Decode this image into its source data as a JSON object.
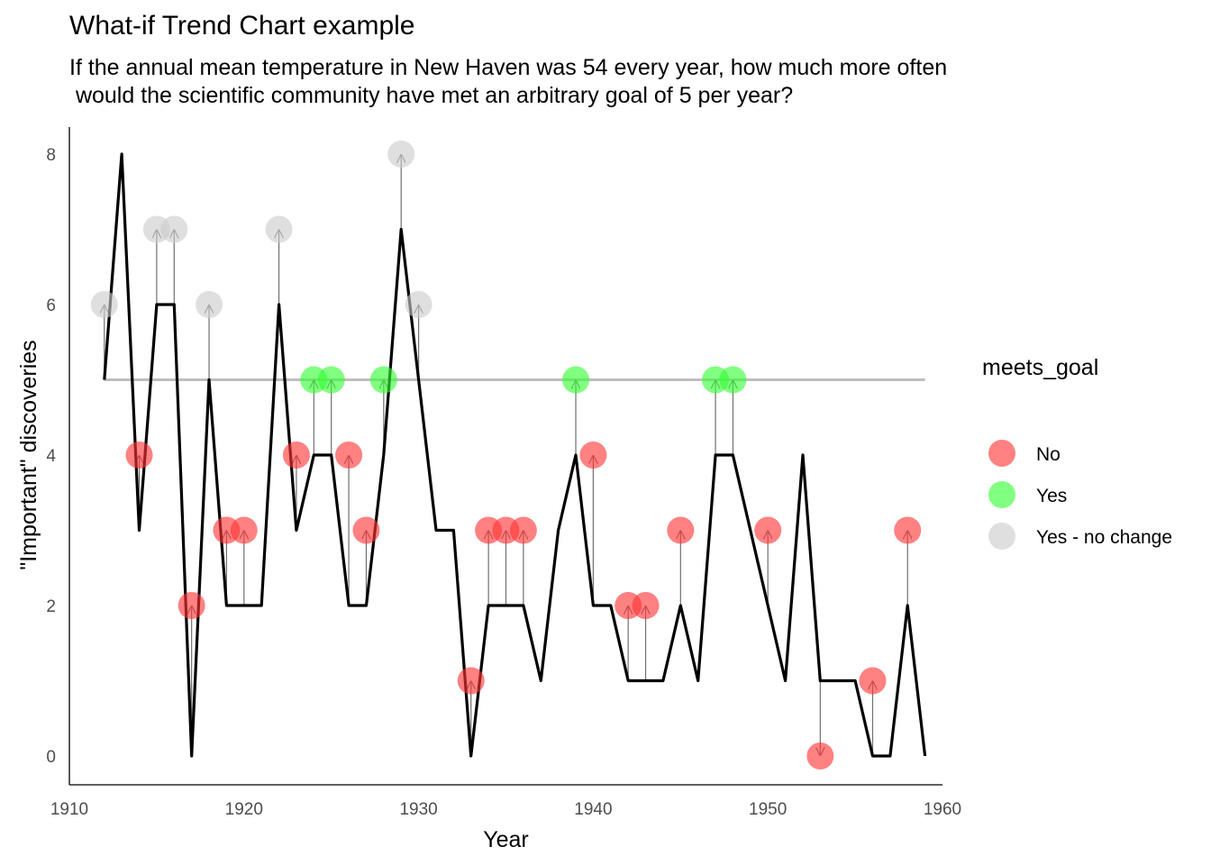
{
  "title": "What-if Trend Chart example",
  "subtitle": "If the annual mean temperature in New Haven was 54 every year, how much more often\n would the scientific community have met an arbitrary goal of 5 per year?",
  "colors": {
    "No": "#FF3333",
    "Yes": "#33FF33",
    "Yes - no change": "#CCCCCC",
    "line": "#000000",
    "goal_line": "#BEBEBE",
    "arrow": "#707070"
  },
  "chart_data": {
    "type": "line",
    "xlabel": "Year",
    "ylabel": "\"Important\" discoveries",
    "xlim": [
      1910,
      1960
    ],
    "ylim": [
      0,
      8
    ],
    "x_ticks": [
      "1910",
      "1920",
      "1930",
      "1940",
      "1950",
      "1960"
    ],
    "y_ticks": [
      "0",
      "2",
      "4",
      "6",
      "8"
    ],
    "goal": 5,
    "legend": {
      "title": "meets_goal",
      "entries": [
        "No",
        "Yes",
        "Yes - no change"
      ],
      "position": "right"
    },
    "actual": {
      "x": [
        1912,
        1913,
        1914,
        1915,
        1916,
        1917,
        1918,
        1919,
        1920,
        1921,
        1922,
        1923,
        1924,
        1925,
        1926,
        1927,
        1928,
        1929,
        1930,
        1931,
        1932,
        1933,
        1934,
        1935,
        1936,
        1937,
        1938,
        1939,
        1940,
        1941,
        1942,
        1943,
        1944,
        1945,
        1946,
        1947,
        1948,
        1949,
        1950,
        1951,
        1952,
        1953,
        1954,
        1955,
        1956,
        1957,
        1958,
        1959
      ],
      "y": [
        5,
        8,
        3,
        6,
        6,
        0,
        5,
        2,
        2,
        2,
        6,
        3,
        4,
        4,
        2,
        2,
        4,
        7,
        5,
        3,
        3,
        0,
        2,
        2,
        2,
        1,
        3,
        4,
        2,
        2,
        1,
        1,
        1,
        2,
        1,
        4,
        4,
        3,
        2,
        1,
        4,
        1,
        1,
        1,
        0,
        0,
        2,
        0
      ]
    },
    "what_if": [
      {
        "x": 1912,
        "y": 6,
        "meets_goal": "Yes - no change"
      },
      {
        "x": 1914,
        "y": 4,
        "meets_goal": "No"
      },
      {
        "x": 1915,
        "y": 7,
        "meets_goal": "Yes - no change"
      },
      {
        "x": 1916,
        "y": 7,
        "meets_goal": "Yes - no change"
      },
      {
        "x": 1917,
        "y": 2,
        "meets_goal": "No"
      },
      {
        "x": 1918,
        "y": 6,
        "meets_goal": "Yes - no change"
      },
      {
        "x": 1919,
        "y": 3,
        "meets_goal": "No"
      },
      {
        "x": 1920,
        "y": 3,
        "meets_goal": "No"
      },
      {
        "x": 1922,
        "y": 7,
        "meets_goal": "Yes - no change"
      },
      {
        "x": 1923,
        "y": 4,
        "meets_goal": "No"
      },
      {
        "x": 1924,
        "y": 5,
        "meets_goal": "Yes"
      },
      {
        "x": 1925,
        "y": 5,
        "meets_goal": "Yes"
      },
      {
        "x": 1926,
        "y": 4,
        "meets_goal": "No"
      },
      {
        "x": 1927,
        "y": 3,
        "meets_goal": "No"
      },
      {
        "x": 1928,
        "y": 5,
        "meets_goal": "Yes"
      },
      {
        "x": 1929,
        "y": 8,
        "meets_goal": "Yes - no change"
      },
      {
        "x": 1930,
        "y": 6,
        "meets_goal": "Yes - no change"
      },
      {
        "x": 1933,
        "y": 1,
        "meets_goal": "No"
      },
      {
        "x": 1934,
        "y": 3,
        "meets_goal": "No"
      },
      {
        "x": 1935,
        "y": 3,
        "meets_goal": "No"
      },
      {
        "x": 1936,
        "y": 3,
        "meets_goal": "No"
      },
      {
        "x": 1939,
        "y": 5,
        "meets_goal": "Yes"
      },
      {
        "x": 1940,
        "y": 4,
        "meets_goal": "No"
      },
      {
        "x": 1942,
        "y": 2,
        "meets_goal": "No"
      },
      {
        "x": 1943,
        "y": 2,
        "meets_goal": "No"
      },
      {
        "x": 1945,
        "y": 3,
        "meets_goal": "No"
      },
      {
        "x": 1947,
        "y": 5,
        "meets_goal": "Yes"
      },
      {
        "x": 1948,
        "y": 5,
        "meets_goal": "Yes"
      },
      {
        "x": 1950,
        "y": 3,
        "meets_goal": "No"
      },
      {
        "x": 1953,
        "y": 0,
        "meets_goal": "No"
      },
      {
        "x": 1956,
        "y": 1,
        "meets_goal": "No"
      },
      {
        "x": 1958,
        "y": 3,
        "meets_goal": "No"
      }
    ]
  }
}
